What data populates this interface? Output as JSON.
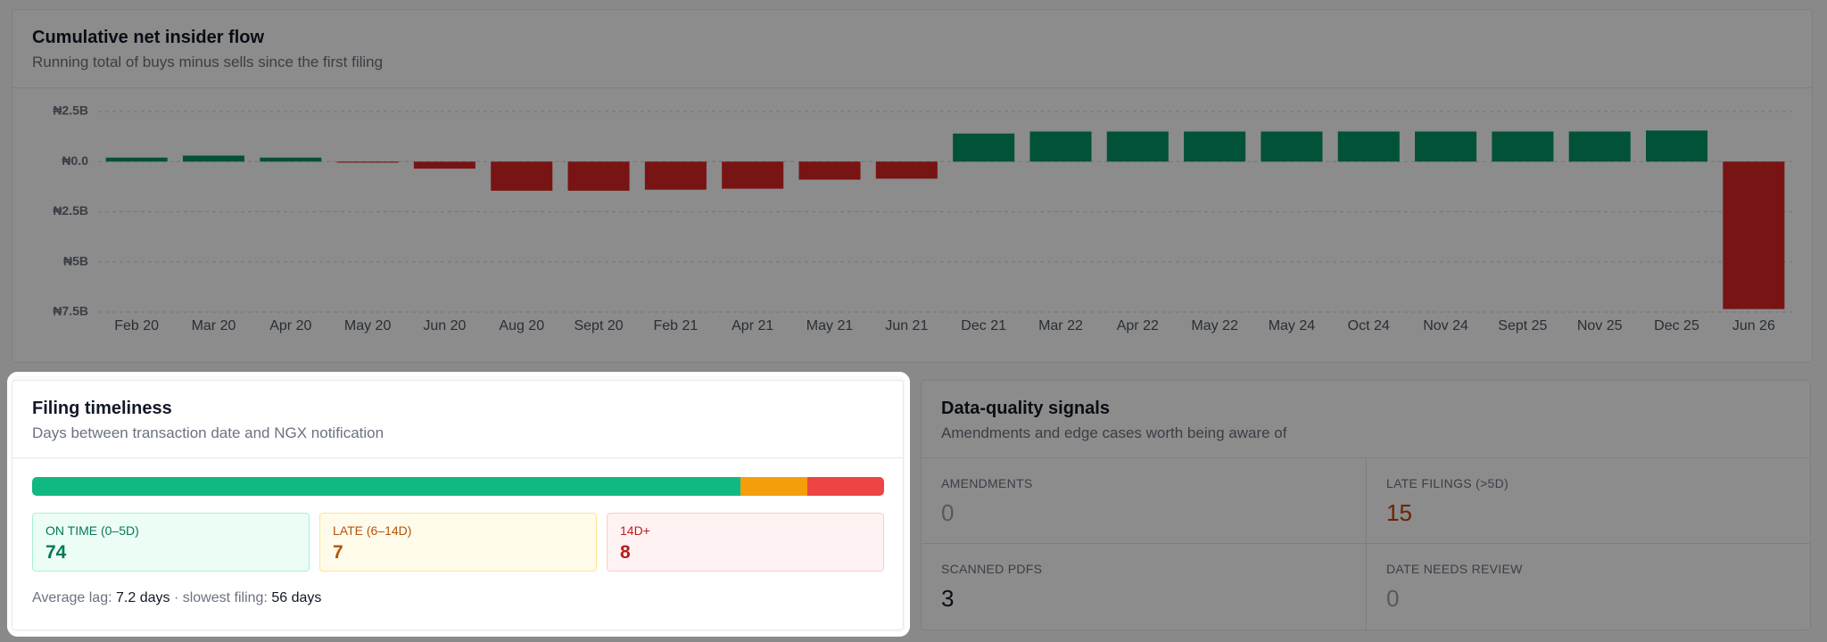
{
  "chart_data": {
    "type": "bar",
    "title": "Cumulative net insider flow",
    "subtitle": "Running total of buys minus sells since the first filing",
    "categories": [
      "Feb 20",
      "Mar 20",
      "Apr 20",
      "May 20",
      "Jun 20",
      "Aug 20",
      "Sept 20",
      "Feb 21",
      "Apr 21",
      "May 21",
      "Jun 21",
      "Dec 21",
      "Mar 22",
      "Apr 22",
      "May 22",
      "May 24",
      "Oct 24",
      "Nov 24",
      "Sept 25",
      "Nov 25",
      "Dec 25",
      "Jun 26"
    ],
    "values": [
      0.2,
      0.3,
      0.2,
      -0.05,
      -0.35,
      -1.45,
      -1.45,
      -1.4,
      -1.35,
      -0.9,
      -0.85,
      1.4,
      1.5,
      1.5,
      1.5,
      1.5,
      1.5,
      1.5,
      1.5,
      1.5,
      1.55,
      -7.35
    ],
    "positive_color": "#059669",
    "negative_color": "#dc2626",
    "ylim": [
      -7.5,
      2.5
    ],
    "yticks": [
      {
        "value": 2.5,
        "label": "₦2.5B"
      },
      {
        "value": 0,
        "label": "₦0.0"
      },
      {
        "value": -2.5,
        "label": "₦2.5B"
      },
      {
        "value": -5,
        "label": "₦5B"
      },
      {
        "value": -7.5,
        "label": "₦7.5B"
      }
    ],
    "grid": true
  },
  "timeliness": {
    "title": "Filing timeliness",
    "subtitle": "Days between transaction date and NGX notification",
    "buckets": [
      {
        "label": "ON TIME (0–5D)",
        "count": 74,
        "color": "#10b981"
      },
      {
        "label": "LATE (6–14D)",
        "count": 7,
        "color": "#f59e0b"
      },
      {
        "label": "14D+",
        "count": 8,
        "color": "#ef4444"
      }
    ],
    "footer": {
      "avg_label": "Average lag:",
      "avg_value": "7.2 days",
      "separator": "·",
      "slowest_label": "slowest filing:",
      "slowest_value": "56 days"
    }
  },
  "quality": {
    "title": "Data-quality signals",
    "subtitle": "Amendments and edge cases worth being aware of",
    "items": [
      {
        "label": "AMENDMENTS",
        "value": 0,
        "color": "#9ca3af"
      },
      {
        "label": "LATE FILINGS (>5D)",
        "value": 15,
        "color": "#c2410c"
      },
      {
        "label": "SCANNED PDFS",
        "value": 3,
        "color": "#111827"
      },
      {
        "label": "DATE NEEDS REVIEW",
        "value": 0,
        "color": "#9ca3af"
      }
    ]
  }
}
